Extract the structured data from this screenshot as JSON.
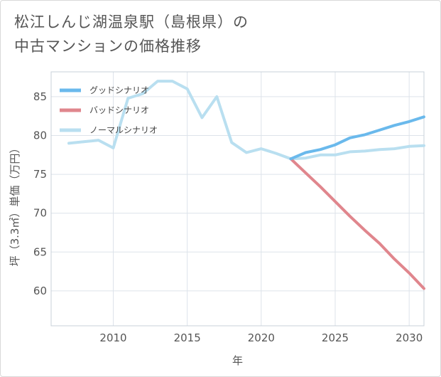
{
  "title": {
    "line1": "松江しんじ湖温泉駅（島根県）の",
    "line2": "中古マンションの価格推移"
  },
  "chart_data": {
    "type": "line",
    "xlabel": "年",
    "ylabel": "坪（3.3㎡）単価（万円）",
    "xlim": [
      2005.8,
      2031.0
    ],
    "ylim": [
      55.5,
      88.2
    ],
    "xticks": [
      2010,
      2015,
      2020,
      2025,
      2030
    ],
    "yticks": [
      60,
      65,
      70,
      75,
      80,
      85
    ],
    "grid": true,
    "legend_position": "top-left",
    "series": [
      {
        "name": "グッドシナリオ",
        "color": "#6ab9ec",
        "x": [
          2022,
          2023,
          2024,
          2025,
          2026,
          2027,
          2028,
          2029,
          2030,
          2031
        ],
        "y": [
          77.0,
          77.8,
          78.2,
          78.8,
          79.7,
          80.1,
          80.7,
          81.3,
          81.8,
          82.4
        ]
      },
      {
        "name": "バッドシナリオ",
        "color": "#e0868d",
        "x": [
          2022,
          2023,
          2024,
          2025,
          2026,
          2027,
          2028,
          2029,
          2030,
          2031
        ],
        "y": [
          77.0,
          75.2,
          73.4,
          71.5,
          69.6,
          67.8,
          66.1,
          64.1,
          62.3,
          60.3
        ]
      },
      {
        "name": "ノーマルシナリオ",
        "color": "#b9dff0",
        "x": [
          2007,
          2008,
          2009,
          2010,
          2011,
          2012,
          2013,
          2014,
          2015,
          2016,
          2017,
          2018,
          2019,
          2020,
          2021,
          2022,
          2023,
          2024,
          2025,
          2026,
          2027,
          2028,
          2029,
          2030,
          2031
        ],
        "y": [
          79.0,
          79.2,
          79.4,
          78.4,
          84.8,
          85.4,
          87.0,
          87.0,
          86.0,
          82.3,
          85.0,
          79.1,
          77.8,
          78.3,
          77.7,
          77.0,
          77.1,
          77.5,
          77.5,
          77.9,
          78.0,
          78.2,
          78.3,
          78.6,
          78.7
        ]
      }
    ]
  }
}
